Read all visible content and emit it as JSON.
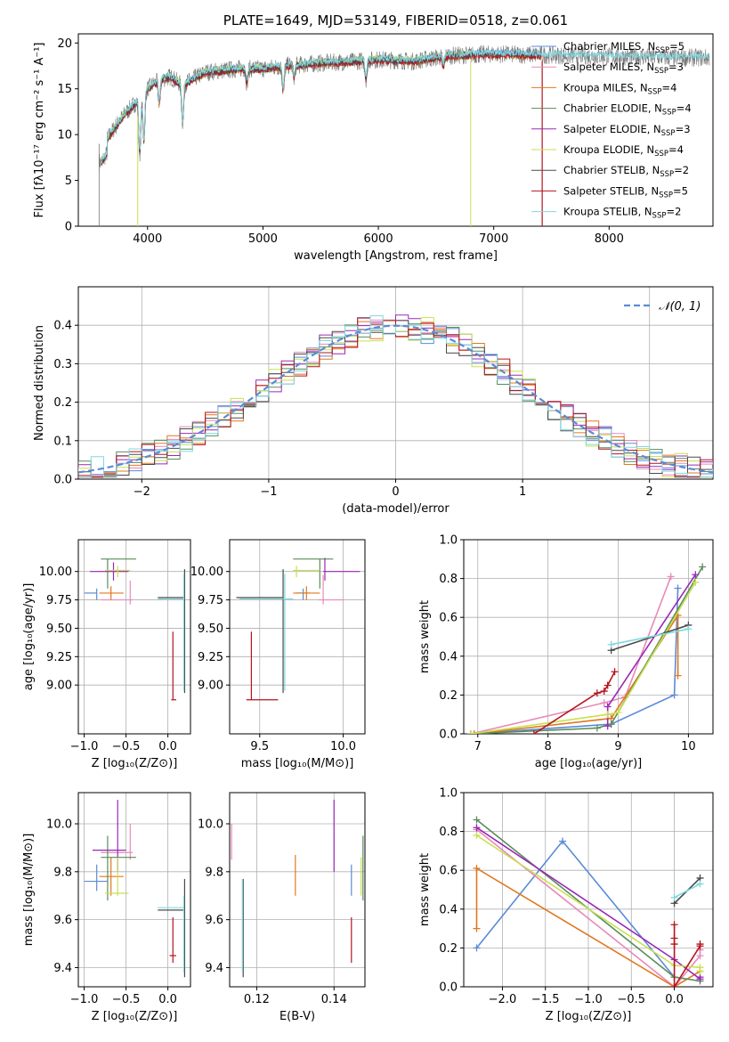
{
  "colors": {
    "chabrier_miles": "#5b8bd5",
    "salpeter_miles": "#e889b8",
    "kroupa_miles": "#e0781f",
    "chabrier_elodie": "#5a8c5a",
    "salpeter_elodie": "#9a28b8",
    "kroupa_elodie": "#c8e050",
    "chabrier_stelib": "#4a4a4a",
    "salpeter_stelib": "#b4141e",
    "kroupa_stelib": "#80d8e0",
    "data": "#777777"
  },
  "chart_data": [
    {
      "id": "spectrum",
      "type": "line",
      "title": "PLATE=1649, MJD=53149, FIBERID=0518, z=0.061",
      "xlabel": "wavelength [Angstrom, rest frame]",
      "ylabel": "Flux [fλ10⁻¹⁷ erg cm⁻² s⁻¹ A⁻¹]",
      "xlim": [
        3400,
        8900
      ],
      "ylim": [
        0,
        21
      ],
      "xticks": [
        "4000",
        "5000",
        "6000",
        "7000",
        "8000"
      ],
      "yticks": [
        "0",
        "5",
        "10",
        "15",
        "20"
      ],
      "legend_position": "right",
      "legend": [
        {
          "key": "chabrier_miles",
          "label": "Chabrier MILES, N_SSP=5",
          "base": "Chabrier MILES, N",
          "sub": "SSP",
          "tail": "=5"
        },
        {
          "key": "salpeter_miles",
          "label": "Salpeter MILES, N_SSP=3",
          "base": "Salpeter MILES, N",
          "sub": "SSP",
          "tail": "=3"
        },
        {
          "key": "kroupa_miles",
          "label": "Kroupa MILES, N_SSP=4",
          "base": "Kroupa MILES, N",
          "sub": "SSP",
          "tail": "=4"
        },
        {
          "key": "chabrier_elodie",
          "label": "Chabrier ELODIE, N_SSP=4",
          "base": "Chabrier ELODIE, N",
          "sub": "SSP",
          "tail": "=4"
        },
        {
          "key": "salpeter_elodie",
          "label": "Salpeter ELODIE, N_SSP=3",
          "base": "Salpeter ELODIE, N",
          "sub": "SSP",
          "tail": "=3"
        },
        {
          "key": "kroupa_elodie",
          "label": "Kroupa ELODIE, N_SSP=4",
          "base": "Kroupa ELODIE, N",
          "sub": "SSP",
          "tail": "=4"
        },
        {
          "key": "chabrier_stelib",
          "label": "Chabrier STELIB, N_SSP=2",
          "base": "Chabrier STELIB, N",
          "sub": "SSP",
          "tail": "=2"
        },
        {
          "key": "salpeter_stelib",
          "label": "Salpeter STELIB, N_SSP=5",
          "base": "Salpeter STELIB, N",
          "sub": "SSP",
          "tail": "=5"
        },
        {
          "key": "kroupa_stelib",
          "label": "Kroupa STELIB, N_SSP=2",
          "base": "Kroupa STELIB, N",
          "sub": "SSP",
          "tail": "=2"
        }
      ],
      "continuum": {
        "x": [
          3600,
          3700,
          3800,
          3900,
          4000,
          4100,
          4200,
          4300,
          4500,
          4800,
          5000,
          5200,
          5500,
          5800,
          6000,
          6300,
          6600,
          7000,
          7400,
          7800,
          8200,
          8600,
          8900
        ],
        "y": [
          8.5,
          10.5,
          12.2,
          13.5,
          15.0,
          16.0,
          16.3,
          15.4,
          16.8,
          17.2,
          17.2,
          17.5,
          17.8,
          18.0,
          18.2,
          18.0,
          18.6,
          18.8,
          18.7,
          18.6,
          18.5,
          18.4,
          18.4
        ]
      },
      "absorption_lines": [
        {
          "x": 3933,
          "depth": 6.0
        },
        {
          "x": 3968,
          "depth": 5.0
        },
        {
          "x": 4102,
          "depth": 2.5
        },
        {
          "x": 4304,
          "depth": 4.0
        },
        {
          "x": 4861,
          "depth": 1.5
        },
        {
          "x": 5175,
          "depth": 2.5
        },
        {
          "x": 5270,
          "depth": 1.2
        },
        {
          "x": 5893,
          "depth": 2.0
        },
        {
          "x": 6563,
          "depth": 1.0
        }
      ]
    },
    {
      "id": "residuals",
      "type": "line",
      "xlabel": "(data-model)/error",
      "ylabel": "Normed distribution",
      "xlim": [
        -2.5,
        2.5
      ],
      "ylim": [
        0,
        0.5
      ],
      "xticks": [
        "−2",
        "−1",
        "0",
        "1",
        "2"
      ],
      "yticks": [
        "0.0",
        "0.1",
        "0.2",
        "0.3",
        "0.4"
      ],
      "legend_position": "top-right",
      "legend": [
        {
          "label": "𝒩(0, 1)"
        }
      ],
      "reference": {
        "name": "𝒩(0, 1)",
        "mu": 0,
        "sigma": 1,
        "style": "dashed"
      }
    },
    {
      "id": "age_vs_Z",
      "type": "scatter",
      "xlabel": "Z [log₁₀(Z/Z⊙)]",
      "ylabel": "age [log₁₀(age/yr)]",
      "xlim": [
        -1.07,
        0.27
      ],
      "ylim": [
        8.57,
        10.28
      ],
      "xticks": [
        "−1.0",
        "−0.5",
        "0.0"
      ],
      "yticks": [
        "9.00",
        "9.25",
        "9.50",
        "9.75",
        "10.00"
      ],
      "points": [
        {
          "key": "chabrier_miles",
          "x": -0.85,
          "y": 9.81,
          "xe": [
            -1.0,
            -0.85
          ],
          "ye": [
            9.75,
            9.85
          ]
        },
        {
          "key": "salpeter_miles",
          "x": -0.45,
          "y": 9.75,
          "xe": [
            -0.8,
            -0.42
          ],
          "ye": [
            9.71,
            9.92
          ]
        },
        {
          "key": "kroupa_miles",
          "x": -0.68,
          "y": 9.81,
          "xe": [
            -0.82,
            -0.53
          ],
          "ye": [
            9.75,
            9.87
          ]
        },
        {
          "key": "chabrier_elodie",
          "x": -0.72,
          "y": 10.11,
          "xe": [
            -0.8,
            -0.38
          ],
          "ye": [
            9.85,
            10.11
          ]
        },
        {
          "key": "salpeter_elodie",
          "x": -0.65,
          "y": 10.0,
          "xe": [
            -0.93,
            -0.47
          ],
          "ye": [
            9.92,
            10.08
          ]
        },
        {
          "key": "kroupa_elodie",
          "x": -0.6,
          "y": 10.01,
          "xe": [
            -0.75,
            -0.45
          ],
          "ye": [
            9.95,
            10.05
          ]
        },
        {
          "key": "chabrier_stelib",
          "x": 0.2,
          "y": 9.77,
          "xe": [
            -0.12,
            0.2
          ],
          "ye": [
            8.93,
            10.02
          ]
        },
        {
          "key": "salpeter_stelib",
          "x": 0.06,
          "y": 8.87,
          "xe": [
            0.04,
            0.1
          ],
          "ye": [
            8.87,
            9.47
          ]
        },
        {
          "key": "kroupa_stelib",
          "x": 0.19,
          "y": 9.76,
          "xe": [
            -0.12,
            0.19
          ],
          "ye": [
            8.95,
            9.98
          ]
        }
      ]
    },
    {
      "id": "age_vs_mass",
      "type": "scatter",
      "xlabel": "mass [log₁₀(M/M⊙)]",
      "ylabel": "",
      "xlim": [
        9.32,
        10.13
      ],
      "ylim": [
        8.57,
        10.28
      ],
      "xticks": [
        "9.5",
        "10.0"
      ],
      "yticks": [
        "9.00",
        "9.25",
        "9.50",
        "9.75",
        "10.00"
      ],
      "points": [
        {
          "key": "chabrier_miles",
          "x": 9.76,
          "y": 9.81,
          "xe": [
            9.72,
            9.8
          ],
          "ye": [
            9.75,
            9.85
          ]
        },
        {
          "key": "salpeter_miles",
          "x": 9.88,
          "y": 9.75,
          "xe": [
            9.85,
            10.0
          ],
          "ye": [
            9.71,
            9.97
          ]
        },
        {
          "key": "kroupa_miles",
          "x": 9.78,
          "y": 9.81,
          "xe": [
            9.7,
            9.86
          ],
          "ye": [
            9.75,
            9.87
          ]
        },
        {
          "key": "chabrier_elodie",
          "x": 9.86,
          "y": 10.11,
          "xe": [
            9.7,
            9.94
          ],
          "ye": [
            9.85,
            10.11
          ]
        },
        {
          "key": "salpeter_elodie",
          "x": 9.89,
          "y": 10.0,
          "xe": [
            9.88,
            10.1
          ],
          "ye": [
            9.92,
            10.12
          ]
        },
        {
          "key": "kroupa_elodie",
          "x": 9.72,
          "y": 10.01,
          "xe": [
            9.7,
            9.86
          ],
          "ye": [
            9.95,
            10.05
          ]
        },
        {
          "key": "chabrier_stelib",
          "x": 9.64,
          "y": 9.77,
          "xe": [
            9.36,
            9.64
          ],
          "ye": [
            8.93,
            10.02
          ]
        },
        {
          "key": "salpeter_stelib",
          "x": 9.45,
          "y": 8.87,
          "xe": [
            9.42,
            9.61
          ],
          "ye": [
            8.87,
            9.47
          ]
        },
        {
          "key": "kroupa_stelib",
          "x": 9.65,
          "y": 9.76,
          "xe": [
            9.38,
            9.7
          ],
          "ye": [
            8.95,
            9.98
          ]
        }
      ]
    },
    {
      "id": "mass_weight_vs_age",
      "type": "line",
      "xlabel": "age [log₁₀(age/yr)]",
      "ylabel": "mass weight",
      "xlim": [
        6.8,
        10.35
      ],
      "ylim": [
        0,
        1.0
      ],
      "xticks": [
        "7",
        "8",
        "9",
        "10"
      ],
      "yticks": [
        "0.0",
        "0.2",
        "0.4",
        "0.6",
        "0.8",
        "1.0"
      ],
      "series": [
        {
          "key": "chabrier_miles",
          "x": [
            6.9,
            8.9,
            9.8,
            9.85
          ],
          "y": [
            0.0,
            0.05,
            0.2,
            0.75
          ]
        },
        {
          "key": "salpeter_miles",
          "x": [
            6.9,
            8.8,
            9.1,
            9.75
          ],
          "y": [
            0.0,
            0.16,
            0.19,
            0.81
          ]
        },
        {
          "key": "kroupa_miles",
          "x": [
            6.95,
            8.9,
            9.85,
            9.85
          ],
          "y": [
            0.0,
            0.08,
            0.61,
            0.3
          ]
        },
        {
          "key": "chabrier_elodie",
          "x": [
            6.9,
            8.7,
            8.9,
            10.2
          ],
          "y": [
            0.0,
            0.03,
            0.05,
            0.86
          ]
        },
        {
          "key": "salpeter_elodie",
          "x": [
            8.85,
            8.85,
            10.1
          ],
          "y": [
            0.04,
            0.14,
            0.82
          ]
        },
        {
          "key": "kroupa_elodie",
          "x": [
            6.9,
            8.85,
            9.0,
            10.1
          ],
          "y": [
            0.0,
            0.1,
            0.11,
            0.78
          ]
        },
        {
          "key": "chabrier_stelib",
          "x": [
            8.9,
            10.0
          ],
          "y": [
            0.43,
            0.56
          ]
        },
        {
          "key": "salpeter_stelib",
          "x": [
            7.8,
            8.7,
            8.8,
            8.85,
            8.95
          ],
          "y": [
            0.0,
            0.21,
            0.22,
            0.25,
            0.32
          ]
        },
        {
          "key": "kroupa_stelib",
          "x": [
            8.9,
            10.0
          ],
          "y": [
            0.46,
            0.54
          ]
        }
      ]
    },
    {
      "id": "mass_vs_Z",
      "type": "scatter",
      "xlabel": "Z [log₁₀(Z/Z⊙)]",
      "ylabel": "mass [log₁₀(M/M⊙)]",
      "xlim": [
        -1.07,
        0.27
      ],
      "ylim": [
        9.32,
        10.13
      ],
      "xticks": [
        "−1.0",
        "−0.5",
        "0.0"
      ],
      "yticks": [
        "9.4",
        "9.6",
        "9.8",
        "10.0"
      ],
      "points": [
        {
          "key": "chabrier_miles",
          "x": -0.85,
          "y": 9.76,
          "xe": [
            -1.0,
            -0.72
          ],
          "ye": [
            9.72,
            9.83
          ]
        },
        {
          "key": "salpeter_miles",
          "x": -0.45,
          "y": 9.88,
          "xe": [
            -0.8,
            -0.42
          ],
          "ye": [
            9.85,
            10.0
          ]
        },
        {
          "key": "kroupa_miles",
          "x": -0.68,
          "y": 9.78,
          "xe": [
            -0.82,
            -0.53
          ],
          "ye": [
            9.7,
            9.86
          ]
        },
        {
          "key": "chabrier_elodie",
          "x": -0.72,
          "y": 9.86,
          "xe": [
            -0.8,
            -0.38
          ],
          "ye": [
            9.68,
            9.95
          ]
        },
        {
          "key": "salpeter_elodie",
          "x": -0.6,
          "y": 9.89,
          "xe": [
            -0.9,
            -0.5
          ],
          "ye": [
            9.8,
            10.1
          ]
        },
        {
          "key": "kroupa_elodie",
          "x": -0.6,
          "y": 9.71,
          "xe": [
            -0.75,
            -0.47
          ],
          "ye": [
            9.7,
            9.86
          ]
        },
        {
          "key": "chabrier_stelib",
          "x": 0.2,
          "y": 9.64,
          "xe": [
            -0.12,
            0.2
          ],
          "ye": [
            9.36,
            9.77
          ]
        },
        {
          "key": "salpeter_stelib",
          "x": 0.06,
          "y": 9.45,
          "xe": [
            0.02,
            0.1
          ],
          "ye": [
            9.42,
            9.61
          ]
        },
        {
          "key": "kroupa_stelib",
          "x": 0.19,
          "y": 9.65,
          "xe": [
            -0.12,
            0.19
          ],
          "ye": [
            9.38,
            9.7
          ]
        }
      ]
    },
    {
      "id": "mass_vs_ebv",
      "type": "scatter",
      "xlabel": "E(B-V)",
      "ylabel": "",
      "xlim": [
        0.113,
        0.148
      ],
      "ylim": [
        9.32,
        10.13
      ],
      "xticks": [
        "0.12",
        "0.14"
      ],
      "yticks": [
        "9.4",
        "9.6",
        "9.8",
        "10.0"
      ],
      "points": [
        {
          "key": "chabrier_miles",
          "x": 0.1445,
          "y": 9.76,
          "ye": [
            9.7,
            9.83
          ]
        },
        {
          "key": "salpeter_miles",
          "x": 0.1135,
          "y": 9.88,
          "ye": [
            9.85,
            10.0
          ]
        },
        {
          "key": "kroupa_miles",
          "x": 0.13,
          "y": 9.78,
          "ye": [
            9.7,
            9.87
          ]
        },
        {
          "key": "chabrier_elodie",
          "x": 0.1475,
          "y": 9.86,
          "ye": [
            9.68,
            9.95
          ]
        },
        {
          "key": "salpeter_elodie",
          "x": 0.14,
          "y": 9.89,
          "ye": [
            9.8,
            10.1
          ]
        },
        {
          "key": "kroupa_elodie",
          "x": 0.147,
          "y": 9.71,
          "ye": [
            9.7,
            9.86
          ]
        },
        {
          "key": "chabrier_stelib",
          "x": 0.1165,
          "y": 9.64,
          "ye": [
            9.36,
            9.77
          ]
        },
        {
          "key": "salpeter_stelib",
          "x": 0.1445,
          "y": 9.45,
          "ye": [
            9.42,
            9.61
          ]
        },
        {
          "key": "kroupa_stelib",
          "x": 0.1163,
          "y": 9.65,
          "ye": [
            9.38,
            9.77
          ]
        }
      ]
    },
    {
      "id": "mass_weight_vs_Z",
      "type": "line",
      "xlabel": "Z [log₁₀(Z/Z⊙)]",
      "ylabel": "mass weight",
      "xlim": [
        -2.45,
        0.45
      ],
      "ylim": [
        0,
        1.0
      ],
      "xticks": [
        "−2.0",
        "−1.5",
        "−1.0",
        "−0.5",
        "0.0"
      ],
      "yticks": [
        "0.0",
        "0.2",
        "0.4",
        "0.6",
        "0.8",
        "1.0"
      ],
      "series": [
        {
          "key": "chabrier_miles",
          "x": [
            -2.3,
            -1.3,
            0.0
          ],
          "y": [
            0.2,
            0.75,
            0.05
          ]
        },
        {
          "key": "salpeter_miles",
          "x": [
            -2.3,
            0.0,
            0.3,
            0.3
          ],
          "y": [
            0.81,
            0.0,
            0.16,
            0.19
          ]
        },
        {
          "key": "kroupa_miles",
          "x": [
            -2.3,
            -2.3,
            0.0,
            0.3
          ],
          "y": [
            0.3,
            0.61,
            0.0,
            0.08
          ]
        },
        {
          "key": "chabrier_elodie",
          "x": [
            -2.3,
            0.0,
            0.3
          ],
          "y": [
            0.86,
            0.05,
            0.03
          ]
        },
        {
          "key": "salpeter_elodie",
          "x": [
            -2.3,
            0.0,
            0.3,
            0.3
          ],
          "y": [
            0.82,
            0.14,
            0.04,
            0.05
          ]
        },
        {
          "key": "kroupa_elodie",
          "x": [
            -2.3,
            0.0,
            0.3,
            0.3
          ],
          "y": [
            0.78,
            0.11,
            0.1,
            0.08
          ]
        },
        {
          "key": "chabrier_stelib",
          "x": [
            0.0,
            0.3
          ],
          "y": [
            0.43,
            0.56
          ]
        },
        {
          "key": "salpeter_stelib",
          "x": [
            0.0,
            0.0,
            0.0,
            0.0,
            0.3,
            0.3
          ],
          "y": [
            0.32,
            0.25,
            0.22,
            0.0,
            0.21,
            0.22
          ]
        },
        {
          "key": "kroupa_stelib",
          "x": [
            0.0,
            0.3
          ],
          "y": [
            0.46,
            0.53
          ]
        }
      ]
    }
  ]
}
